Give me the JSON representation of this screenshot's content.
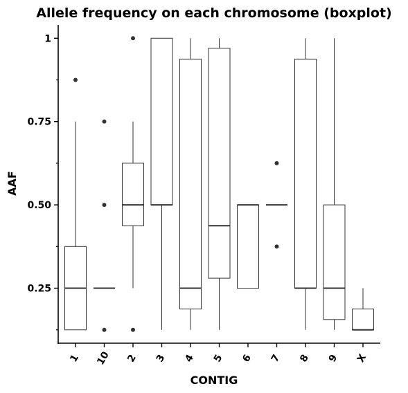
{
  "chart_data": {
    "type": "boxplot",
    "title": "Allele frequency on each chromosome (boxplot)",
    "xlabel": "CONTIG",
    "ylabel": "AAF",
    "ylim": [
      0.085,
      1.04
    ],
    "yticks": [
      0.25,
      0.5,
      0.75,
      1
    ],
    "ytick_labels": [
      "0.25",
      "0.50",
      "0.75",
      "1"
    ],
    "ytick_minor": [
      0.125,
      0.375,
      0.625,
      0.875
    ],
    "grid": false,
    "categories": [
      "1",
      "10",
      "2",
      "3",
      "4",
      "5",
      "6",
      "7",
      "8",
      "9",
      "X"
    ],
    "boxes": [
      {
        "q1": 0.125,
        "median": 0.25,
        "q3": 0.375,
        "whisker_low": 0.125,
        "whisker_high": 0.75,
        "outliers": [
          0.875
        ]
      },
      {
        "q1": 0.25,
        "median": 0.25,
        "q3": 0.25,
        "whisker_low": 0.25,
        "whisker_high": 0.25,
        "outliers": [
          0.125,
          0.5,
          0.75
        ]
      },
      {
        "q1": 0.4375,
        "median": 0.5,
        "q3": 0.625,
        "whisker_low": 0.25,
        "whisker_high": 0.75,
        "outliers": [
          0.125,
          1.0
        ]
      },
      {
        "q1": 0.5,
        "median": 0.5,
        "q3": 1.0,
        "whisker_low": 0.125,
        "whisker_high": 1.0,
        "outliers": []
      },
      {
        "q1": 0.1875,
        "median": 0.25,
        "q3": 0.9375,
        "whisker_low": 0.125,
        "whisker_high": 1.0,
        "outliers": []
      },
      {
        "q1": 0.28,
        "median": 0.4375,
        "q3": 0.97,
        "whisker_low": 0.125,
        "whisker_high": 1.0,
        "outliers": []
      },
      {
        "q1": 0.25,
        "median": 0.5,
        "q3": 0.5,
        "whisker_low": 0.25,
        "whisker_high": 0.5,
        "outliers": []
      },
      {
        "q1": 0.5,
        "median": 0.5,
        "q3": 0.5,
        "whisker_low": 0.5,
        "whisker_high": 0.5,
        "outliers": [
          0.375,
          0.625
        ]
      },
      {
        "q1": 0.25,
        "median": 0.25,
        "q3": 0.9375,
        "whisker_low": 0.125,
        "whisker_high": 1.0,
        "outliers": []
      },
      {
        "q1": 0.156,
        "median": 0.25,
        "q3": 0.5,
        "whisker_low": 0.125,
        "whisker_high": 1.0,
        "outliers": []
      },
      {
        "q1": 0.125,
        "median": 0.125,
        "q3": 0.1875,
        "whisker_low": 0.125,
        "whisker_high": 0.25,
        "outliers": []
      }
    ]
  }
}
